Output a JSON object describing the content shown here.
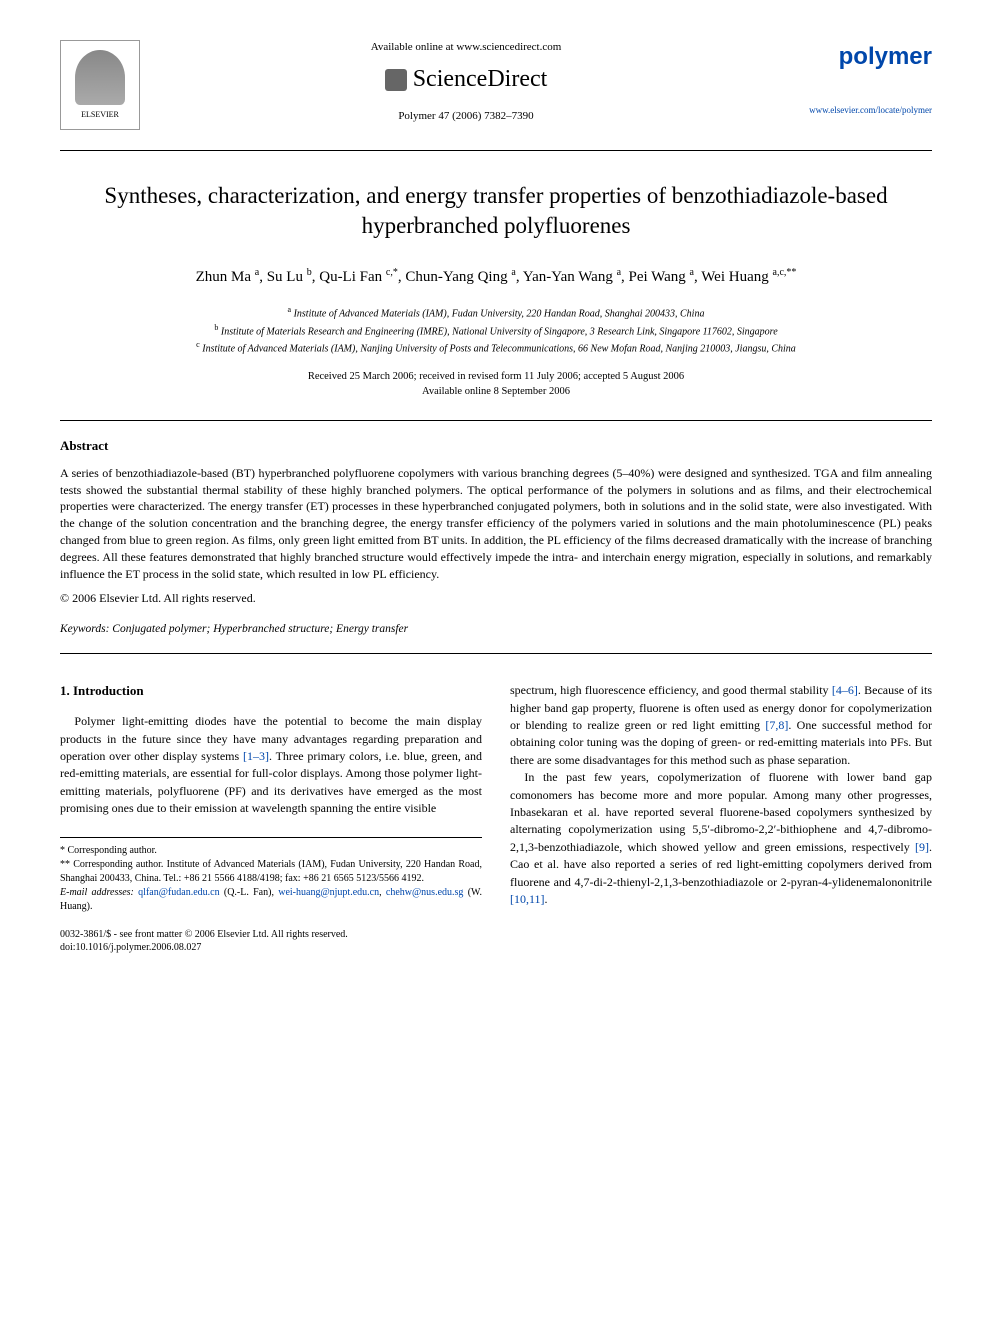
{
  "header": {
    "available_online": "Available online at www.sciencedirect.com",
    "sciencedirect": "ScienceDirect",
    "journal_reference": "Polymer 47 (2006) 7382–7390",
    "elsevier_label": "ELSEVIER",
    "journal_name": "polymer",
    "journal_url": "www.elsevier.com/locate/polymer"
  },
  "title": "Syntheses, characterization, and energy transfer properties of benzothiadiazole-based hyperbranched polyfluorenes",
  "authors_html": "Zhun Ma <sup>a</sup>, Su Lu <sup>b</sup>, Qu-Li Fan <sup>c,*</sup>, Chun-Yang Qing <sup>a</sup>, Yan-Yan Wang <sup>a</sup>, Pei Wang <sup>a</sup>, Wei Huang <sup>a,c,**</sup>",
  "affiliations": {
    "a": "Institute of Advanced Materials (IAM), Fudan University, 220 Handan Road, Shanghai 200433, China",
    "b": "Institute of Materials Research and Engineering (IMRE), National University of Singapore, 3 Research Link, Singapore 117602, Singapore",
    "c": "Institute of Advanced Materials (IAM), Nanjing University of Posts and Telecommunications, 66 New Mofan Road, Nanjing 210003, Jiangsu, China"
  },
  "dates": {
    "received": "Received 25 March 2006; received in revised form 11 July 2006; accepted 5 August 2006",
    "online": "Available online 8 September 2006"
  },
  "abstract": {
    "heading": "Abstract",
    "body": "A series of benzothiadiazole-based (BT) hyperbranched polyfluorene copolymers with various branching degrees (5–40%) were designed and synthesized. TGA and film annealing tests showed the substantial thermal stability of these highly branched polymers. The optical performance of the polymers in solutions and as films, and their electrochemical properties were characterized. The energy transfer (ET) processes in these hyperbranched conjugated polymers, both in solutions and in the solid state, were also investigated. With the change of the solution concentration and the branching degree, the energy transfer efficiency of the polymers varied in solutions and the main photoluminescence (PL) peaks changed from blue to green region. As films, only green light emitted from BT units. In addition, the PL efficiency of the films decreased dramatically with the increase of branching degrees. All these features demonstrated that highly branched structure would effectively impede the intra- and interchain energy migration, especially in solutions, and remarkably influence the ET process in the solid state, which resulted in low PL efficiency.",
    "copyright": "© 2006 Elsevier Ltd. All rights reserved."
  },
  "keywords": {
    "label": "Keywords:",
    "text": "Conjugated polymer; Hyperbranched structure; Energy transfer"
  },
  "intro": {
    "heading": "1. Introduction",
    "p1": "Polymer light-emitting diodes have the potential to become the main display products in the future since they have many advantages regarding preparation and operation over other display systems [1–3]. Three primary colors, i.e. blue, green, and red-emitting materials, are essential for full-color displays. Among those polymer light-emitting materials, polyfluorene (PF) and its derivatives have emerged as the most promising ones due to their emission at wavelength spanning the entire visible",
    "p2": "spectrum, high fluorescence efficiency, and good thermal stability [4–6]. Because of its higher band gap property, fluorene is often used as energy donor for copolymerization or blending to realize green or red light emitting [7,8]. One successful method for obtaining color tuning was the doping of green- or red-emitting materials into PFs. But there are some disadvantages for this method such as phase separation.",
    "p3": "In the past few years, copolymerization of fluorene with lower band gap comonomers has become more and more popular. Among many other progresses, Inbasekaran et al. have reported several fluorene-based copolymers synthesized by alternating copolymerization using 5,5′-dibromo-2,2′-bithiophene and 4,7-dibromo-2,1,3-benzothiadiazole, which showed yellow and green emissions, respectively [9]. Cao et al. have also reported a series of red light-emitting copolymers derived from fluorene and 4,7-di-2-thienyl-2,1,3-benzothiadiazole or 2-pyran-4-ylidenemalononitrile [10,11]."
  },
  "footnotes": {
    "corr1": "* Corresponding author.",
    "corr2": "** Corresponding author. Institute of Advanced Materials (IAM), Fudan University, 220 Handan Road, Shanghai 200433, China. Tel.: +86 21 5566 4188/4198; fax: +86 21 6565 5123/5566 4192.",
    "emails_label": "E-mail addresses:",
    "email1": "qlfan@fudan.edu.cn",
    "email1_name": "(Q.-L. Fan),",
    "email2": "wei-huang@njupt.edu.cn",
    "email2_sep": ",",
    "email3": "chehw@nus.edu.sg",
    "email3_name": "(W. Huang)."
  },
  "bottom": {
    "line1": "0032-3861/$ - see front matter © 2006 Elsevier Ltd. All rights reserved.",
    "line2": "doi:10.1016/j.polymer.2006.08.027"
  },
  "colors": {
    "link": "#0047ab",
    "text": "#000000",
    "background": "#ffffff"
  }
}
